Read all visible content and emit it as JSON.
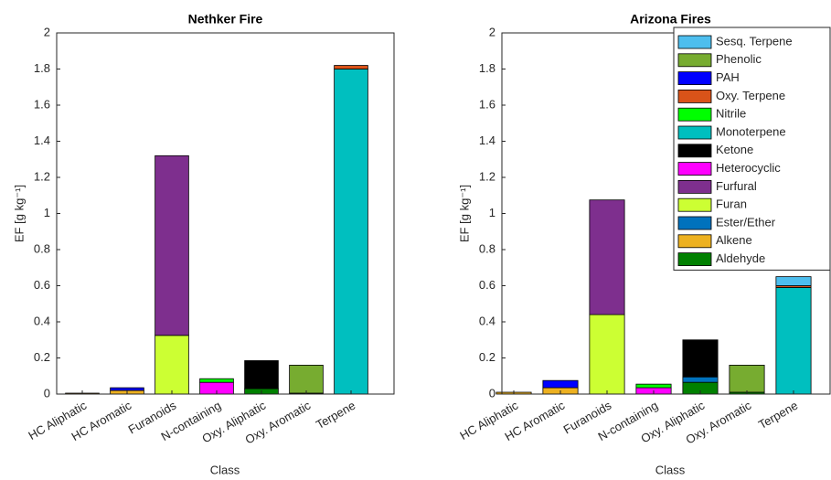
{
  "chart_data": [
    {
      "type": "bar",
      "stacked": true,
      "title": "Nethker Fire",
      "xlabel": "Class",
      "ylabel": "EF [g kg⁻¹]",
      "categories": [
        "HC Aliphatic",
        "HC Aromatic",
        "Furanoids",
        "N-containing",
        "Oxy. Aliphatic",
        "Oxy. Aromatic",
        "Terpene"
      ],
      "ylim": [
        0,
        2
      ],
      "yticks": [
        0,
        0.2,
        0.4,
        0.6,
        0.8,
        1,
        1.2,
        1.4,
        1.6,
        1.8,
        2
      ],
      "series": [
        {
          "color": "#008000",
          "values": [
            0,
            0,
            0,
            0,
            0.03,
            0.005,
            0
          ]
        },
        {
          "color": "#edb120",
          "values": [
            0.005,
            0.02,
            0,
            0,
            0,
            0,
            0
          ]
        },
        {
          "color": "#0072bd",
          "values": [
            0,
            0,
            0,
            0,
            0,
            0,
            0
          ]
        },
        {
          "color": "#ccff33",
          "values": [
            0,
            0,
            0.325,
            0,
            0,
            0,
            0
          ]
        },
        {
          "color": "#7e2f8e",
          "values": [
            0,
            0,
            0.995,
            0,
            0,
            0,
            0
          ]
        },
        {
          "color": "#ff00ff",
          "values": [
            0,
            0,
            0,
            0.065,
            0,
            0,
            0
          ]
        },
        {
          "color": "#000000",
          "values": [
            0,
            0,
            0,
            0,
            0.155,
            0,
            0
          ]
        },
        {
          "color": "#00bfbf",
          "values": [
            0,
            0,
            0,
            0,
            0,
            0,
            1.8
          ]
        },
        {
          "color": "#00ff00",
          "values": [
            0,
            0,
            0,
            0.02,
            0,
            0,
            0
          ]
        },
        {
          "color": "#d95319",
          "values": [
            0,
            0,
            0,
            0,
            0,
            0,
            0.02
          ]
        },
        {
          "color": "#0000ff",
          "values": [
            0,
            0.015,
            0,
            0,
            0,
            0,
            0
          ]
        },
        {
          "color": "#77ac30",
          "values": [
            0,
            0,
            0,
            0,
            0,
            0.155,
            0
          ]
        },
        {
          "color": "#4dbeee",
          "values": [
            0,
            0,
            0,
            0,
            0,
            0,
            0
          ]
        }
      ]
    },
    {
      "type": "bar",
      "stacked": true,
      "title": "Arizona Fires",
      "xlabel": "Class",
      "ylabel": "EF [g kg⁻¹]",
      "legend": "upper right",
      "categories": [
        "HC Aliphatic",
        "HC Aromatic",
        "Furanoids",
        "N-containing",
        "Oxy. Aliphatic",
        "Oxy. Aromatic",
        "Terpene"
      ],
      "ylim": [
        0,
        2
      ],
      "yticks": [
        0,
        0.2,
        0.4,
        0.6,
        0.8,
        1,
        1.2,
        1.4,
        1.6,
        1.8,
        2
      ],
      "series": [
        {
          "name": "Aldehyde",
          "color": "#008000",
          "values": [
            0,
            0,
            0,
            0,
            0.065,
            0.01,
            0
          ]
        },
        {
          "name": "Alkene",
          "color": "#edb120",
          "values": [
            0.01,
            0.035,
            0,
            0,
            0,
            0,
            0
          ]
        },
        {
          "name": "Ester/Ether",
          "color": "#0072bd",
          "values": [
            0,
            0,
            0,
            0,
            0.03,
            0,
            0
          ]
        },
        {
          "name": "Furan",
          "color": "#ccff33",
          "values": [
            0,
            0,
            0.44,
            0,
            0,
            0,
            0
          ]
        },
        {
          "name": "Furfural",
          "color": "#7e2f8e",
          "values": [
            0,
            0,
            0.635,
            0,
            0,
            0,
            0
          ]
        },
        {
          "name": "Heterocyclic",
          "color": "#ff00ff",
          "values": [
            0,
            0,
            0,
            0.035,
            0,
            0,
            0
          ]
        },
        {
          "name": "Ketone",
          "color": "#000000",
          "values": [
            0,
            0,
            0,
            0,
            0.205,
            0,
            0
          ]
        },
        {
          "name": "Monoterpene",
          "color": "#00bfbf",
          "values": [
            0,
            0,
            0,
            0,
            0,
            0,
            0.59
          ]
        },
        {
          "name": "Nitrile",
          "color": "#00ff00",
          "values": [
            0,
            0,
            0,
            0.02,
            0,
            0,
            0
          ]
        },
        {
          "name": "Oxy. Terpene",
          "color": "#d95319",
          "values": [
            0,
            0,
            0,
            0,
            0,
            0,
            0.01
          ]
        },
        {
          "name": "PAH",
          "color": "#0000ff",
          "values": [
            0,
            0.04,
            0,
            0,
            0,
            0,
            0
          ]
        },
        {
          "name": "Phenolic",
          "color": "#77ac30",
          "values": [
            0,
            0,
            0,
            0,
            0,
            0.15,
            0
          ]
        },
        {
          "name": "Sesq. Terpene",
          "color": "#4dbeee",
          "values": [
            0,
            0,
            0,
            0,
            0,
            0,
            0.05
          ]
        }
      ]
    }
  ]
}
